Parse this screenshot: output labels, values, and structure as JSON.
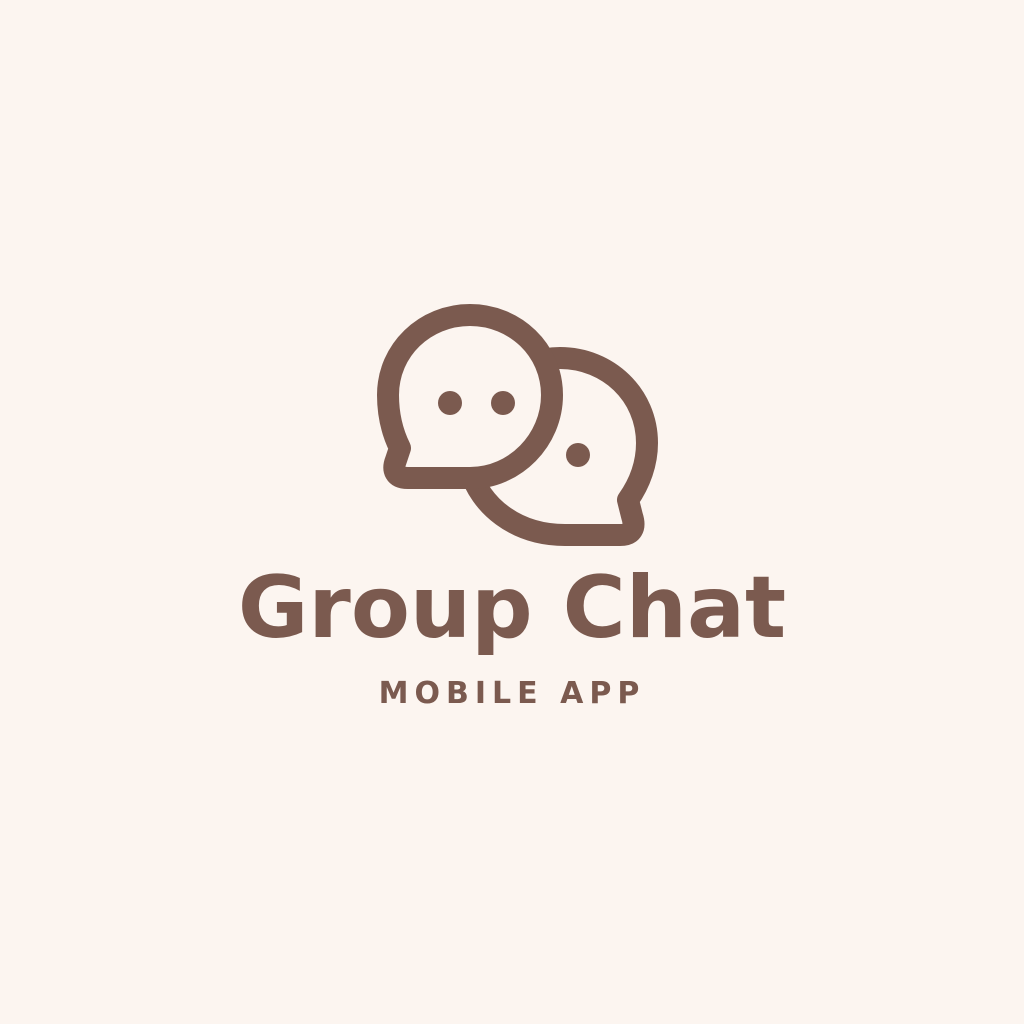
{
  "logo": {
    "title": "Group Chat",
    "subtitle": "MOBILE APP",
    "icon": "group-chat-speech-bubbles-icon",
    "colors": {
      "background": "#fcf5f0",
      "brand": "#7b5a4f"
    }
  }
}
